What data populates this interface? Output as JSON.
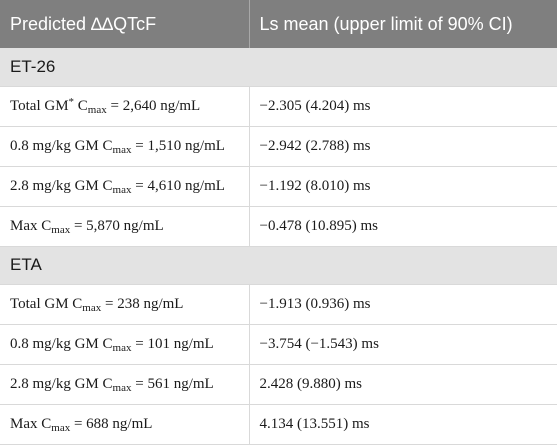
{
  "header": {
    "col1": "Predicted ∆∆QTcF",
    "col2": "Ls mean (upper limit of 90% CI)"
  },
  "sections": [
    {
      "title": "ET-26",
      "rows": [
        {
          "pre": "Total GM",
          "sup": "*",
          "c": " C",
          "sub": "max",
          "post": " = 2,640 ng/mL",
          "value": "−2.305 (4.204) ms"
        },
        {
          "pre": "0.8 mg/kg GM",
          "sup": "",
          "c": " C",
          "sub": "max",
          "post": " = 1,510 ng/mL",
          "value": "−2.942 (2.788) ms"
        },
        {
          "pre": "2.8 mg/kg GM",
          "sup": "",
          "c": " C",
          "sub": "max",
          "post": " = 4,610 ng/mL",
          "value": "−1.192 (8.010) ms"
        },
        {
          "pre": "Max",
          "sup": "",
          "c": " C",
          "sub": "max",
          "post": " = 5,870 ng/mL",
          "value": "−0.478 (10.895) ms"
        }
      ]
    },
    {
      "title": "ETA",
      "rows": [
        {
          "pre": "Total GM",
          "sup": "",
          "c": " C",
          "sub": "max",
          "post": " = 238 ng/mL",
          "value": "−1.913 (0.936) ms"
        },
        {
          "pre": "0.8 mg/kg GM",
          "sup": "",
          "c": " C",
          "sub": "max",
          "post": " = 101 ng/mL",
          "value": "−3.754 (−1.543) ms"
        },
        {
          "pre": "2.8 mg/kg GM",
          "sup": "",
          "c": " C",
          "sub": "max",
          "post": " = 561 ng/mL",
          "value": "2.428 (9.880) ms"
        },
        {
          "pre": "Max",
          "sup": "",
          "c": " C",
          "sub": "max",
          "post": " = 688 ng/mL",
          "value": "4.134 (13.551) ms"
        }
      ]
    }
  ]
}
